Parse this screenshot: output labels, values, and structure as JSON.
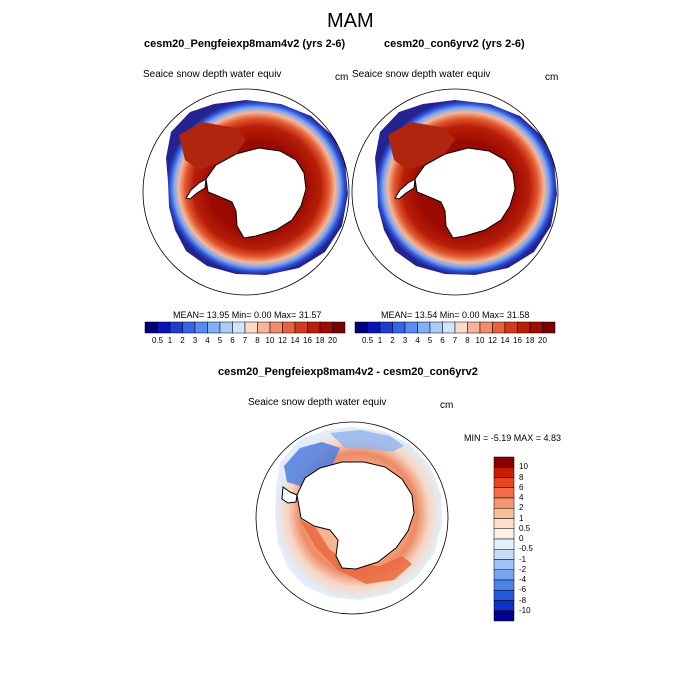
{
  "page": {
    "title": "MAM"
  },
  "panels": [
    {
      "title": "cesm20_Pengfeiexp8mam4v2 (yrs 2-6)",
      "variable": "Seaice snow depth water equiv",
      "units": "cm",
      "stats": "MEAN= 13.95  Min=  0.00  Max= 31.57"
    },
    {
      "title": "cesm20_con6yrv2 (yrs 2-6)",
      "variable": "Seaice snow depth water equiv",
      "units": "cm",
      "stats": "MEAN= 13.54  Min=  0.00  Max= 31.58"
    },
    {
      "title": "cesm20_Pengfeiexp8mam4v2 - cesm20_con6yrv2",
      "variable": "Seaice snow depth water equiv",
      "units": "cm",
      "stats": "MIN =  -5.19 MAX =   4.83"
    }
  ],
  "colorbar_abs": {
    "labels": [
      "0.5",
      "1",
      "2",
      "3",
      "4",
      "5",
      "6",
      "7",
      "8",
      "10",
      "12",
      "14",
      "16",
      "18",
      "20"
    ],
    "colors": [
      "#00007d",
      "#0a14b4",
      "#1e3cd2",
      "#3764e6",
      "#5a8cf0",
      "#82aff5",
      "#aacdfa",
      "#d2e6fa",
      "#fadcc8",
      "#f5b49b",
      "#f08c6e",
      "#e6643c",
      "#d23c1e",
      "#b91e0a",
      "#a00a00",
      "#780000"
    ]
  },
  "colorbar_diff": {
    "labels": [
      "10",
      "8",
      "6",
      "4",
      "2",
      "1",
      "0.5",
      "0",
      "-0.5",
      "-1",
      "-2",
      "-4",
      "-6",
      "-8",
      "-10"
    ],
    "colors": [
      "#8c0000",
      "#c81e00",
      "#e6461e",
      "#f06e46",
      "#f5966e",
      "#fabe9b",
      "#fde0c8",
      "#fdf0e6",
      "#e6f0fa",
      "#c8dcfa",
      "#a0c3f5",
      "#78a5f0",
      "#4b82e6",
      "#235adc",
      "#0a32c8",
      "#00008c"
    ]
  }
}
